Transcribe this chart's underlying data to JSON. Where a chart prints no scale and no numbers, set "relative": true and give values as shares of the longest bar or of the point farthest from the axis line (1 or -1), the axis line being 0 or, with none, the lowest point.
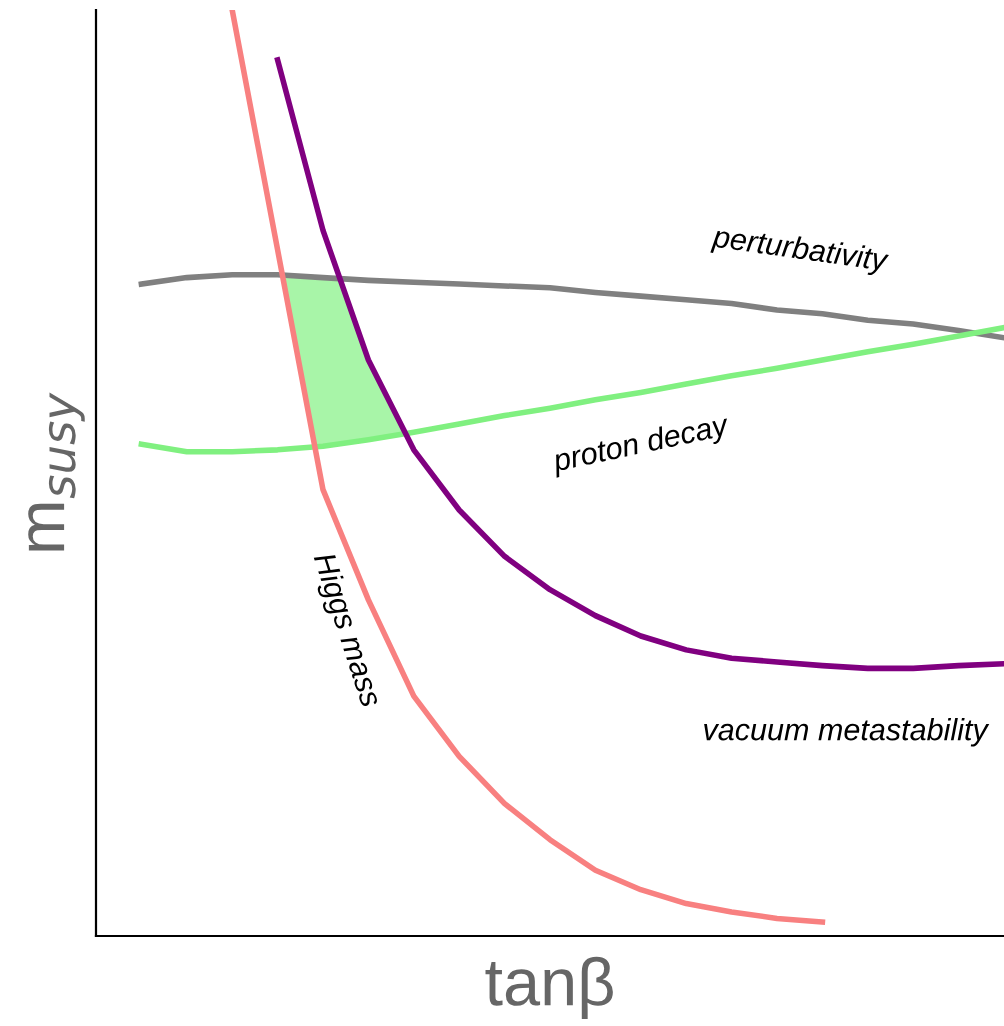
{
  "chart_data": {
    "type": "line",
    "relative": true,
    "xlabel": "tanβ",
    "ylabel": "m$_{susy}$",
    "grid": false,
    "legend": false,
    "categories": [
      null,
      null,
      null,
      null,
      null,
      null,
      null,
      null,
      null,
      null,
      null,
      null,
      null,
      null,
      null,
      null,
      null,
      null,
      null,
      null,
      null
    ],
    "series": [
      {
        "name": "perturbativity",
        "color": "#808080",
        "values": [
          null,
          0.704,
          0.711,
          0.714,
          0.714,
          0.711,
          0.708,
          0.706,
          0.704,
          0.702,
          0.7,
          0.695,
          0.691,
          0.687,
          0.683,
          0.676,
          0.672,
          0.665,
          0.661,
          0.654,
          0.646
        ]
      },
      {
        "name": "proton decay",
        "color": "#80f080",
        "values": [
          null,
          0.531,
          0.523,
          0.523,
          0.525,
          0.529,
          0.536,
          0.544,
          0.553,
          0.562,
          0.57,
          0.579,
          0.587,
          0.596,
          0.605,
          0.613,
          0.622,
          0.631,
          0.639,
          0.648,
          0.657
        ]
      },
      {
        "name": "vacuum metastability",
        "color": "#800080",
        "values": [
          null,
          null,
          null,
          null,
          0.946,
          0.762,
          0.622,
          0.525,
          0.46,
          0.41,
          0.374,
          0.346,
          0.324,
          0.309,
          0.3,
          0.296,
          0.292,
          0.289,
          0.289,
          0.292,
          0.294
        ]
      },
      {
        "name": "Higgs mass",
        "color": "#f88080",
        "values": [
          null,
          null,
          null,
          1,
          0.741,
          0.482,
          0.363,
          0.259,
          0.194,
          0.143,
          0.104,
          0.071,
          0.05,
          0.035,
          0.026,
          0.019,
          0.015,
          null,
          null,
          null,
          null
        ]
      }
    ]
  }
}
